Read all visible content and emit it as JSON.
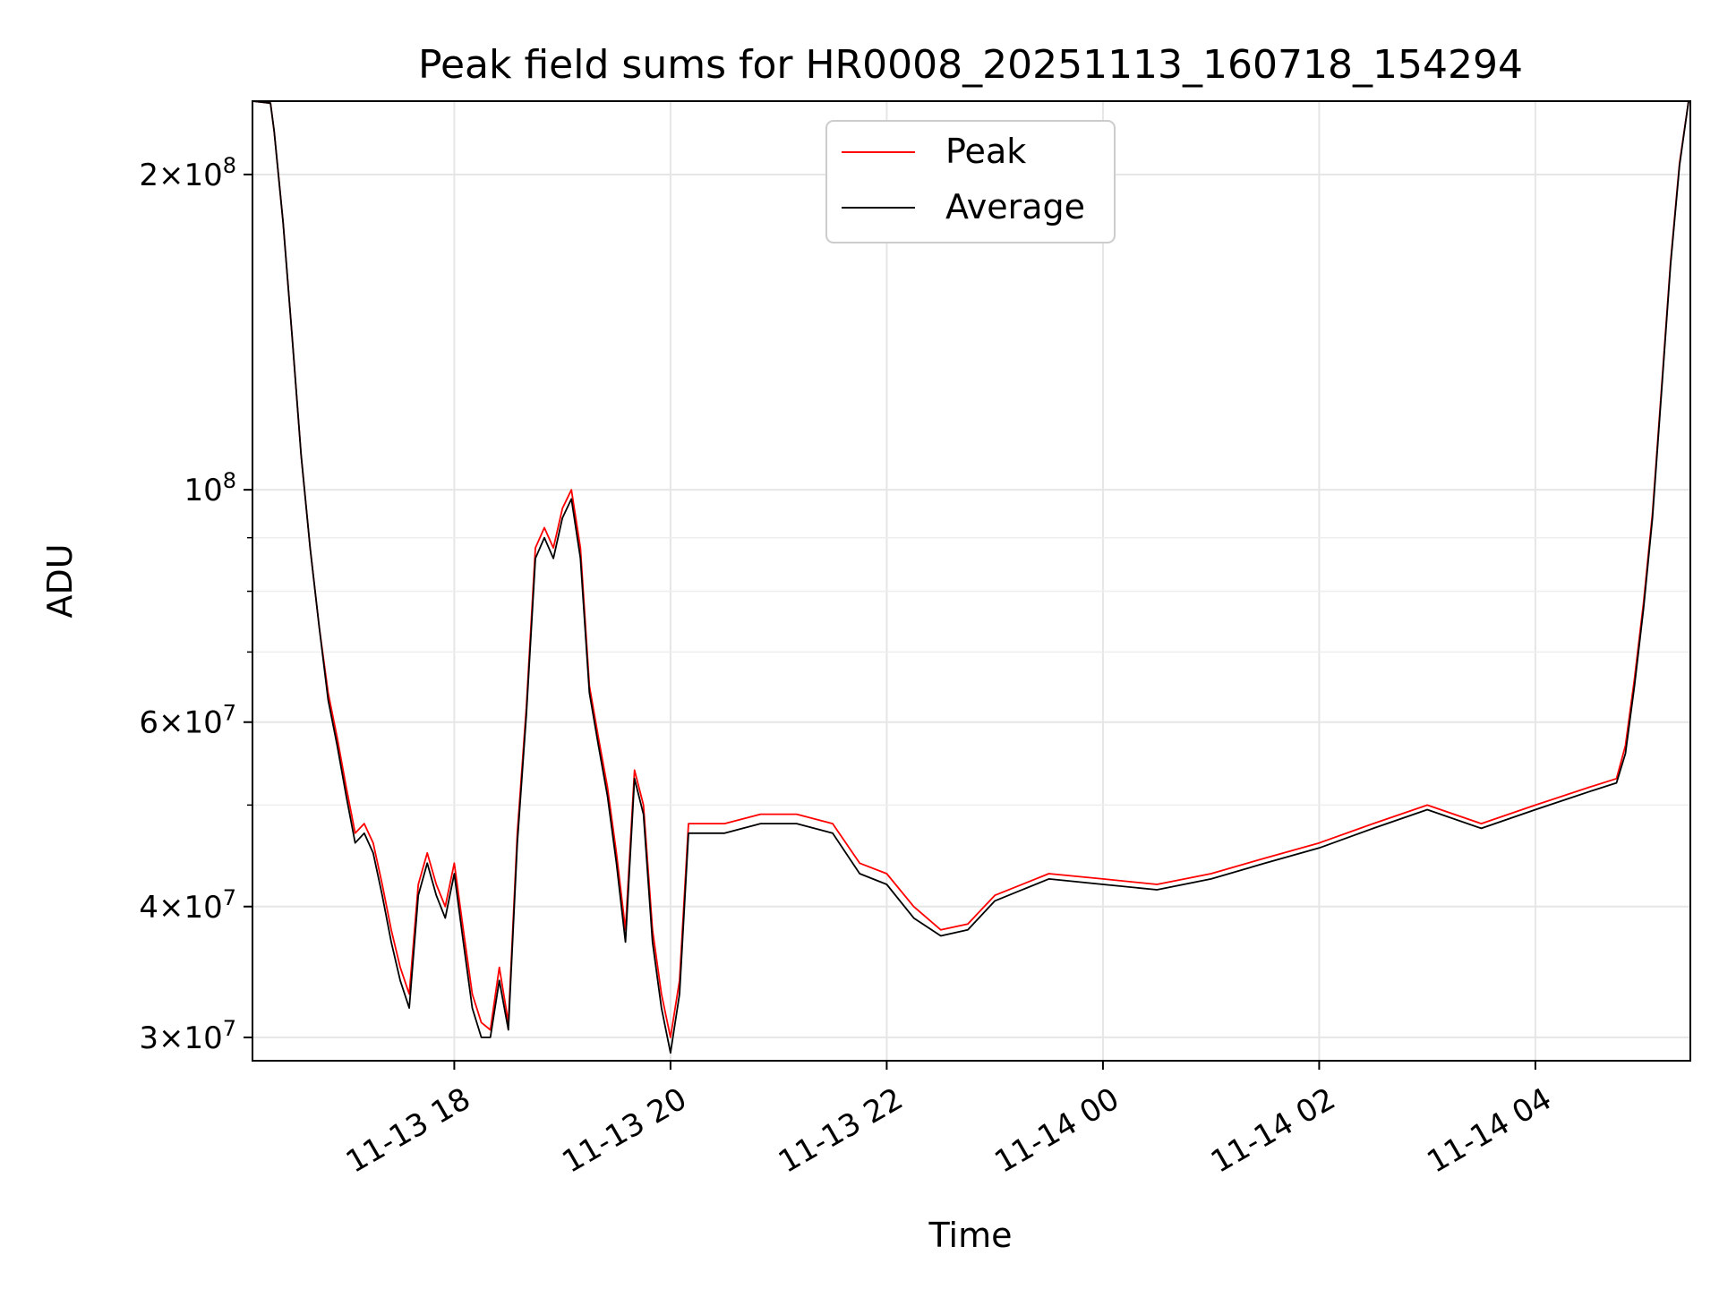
{
  "chart_data": {
    "type": "line",
    "title": "Peak field sums for HR0008_20251113_160718_154294",
    "xlabel": "Time",
    "ylabel": "ADU",
    "yscale": "log",
    "xlim": [
      "2025-11-13 16:08",
      "2025-11-14 05:26"
    ],
    "ylim": [
      28500000,
      235000000
    ],
    "x_ticks": [
      "11-13 18",
      "11-13 20",
      "11-13 22",
      "11-14 00",
      "11-14 02",
      "11-14 04"
    ],
    "y_ticks": [
      {
        "value": 30000000,
        "mant": "3",
        "exp": "7"
      },
      {
        "value": 40000000,
        "mant": "4",
        "exp": "7"
      },
      {
        "value": 60000000,
        "mant": "6",
        "exp": "7"
      },
      {
        "value": 100000000,
        "mant": "",
        "exp": "8"
      },
      {
        "value": 200000000,
        "mant": "2",
        "exp": "8"
      }
    ],
    "y_minor_ticks": [
      50000000,
      70000000,
      80000000,
      90000000
    ],
    "grid": true,
    "legend": {
      "placement": "top-center"
    },
    "series": [
      {
        "name": "Peak",
        "color": "#ff0000",
        "points": [
          [
            "2025-11-13 16:08",
            235000000
          ],
          [
            "2025-11-13 16:18",
            234000000
          ],
          [
            "2025-11-13 16:20",
            220000000
          ],
          [
            "2025-11-13 16:25",
            180000000
          ],
          [
            "2025-11-13 16:30",
            140000000
          ],
          [
            "2025-11-13 16:35",
            108000000
          ],
          [
            "2025-11-13 16:40",
            88000000
          ],
          [
            "2025-11-13 16:45",
            74000000
          ],
          [
            "2025-11-13 16:50",
            64000000
          ],
          [
            "2025-11-13 16:55",
            58000000
          ],
          [
            "2025-11-13 17:00",
            52000000
          ],
          [
            "2025-11-13 17:05",
            47000000
          ],
          [
            "2025-11-13 17:10",
            48000000
          ],
          [
            "2025-11-13 17:15",
            46000000
          ],
          [
            "2025-11-13 17:20",
            42000000
          ],
          [
            "2025-11-13 17:25",
            38000000
          ],
          [
            "2025-11-13 17:30",
            35000000
          ],
          [
            "2025-11-13 17:35",
            33000000
          ],
          [
            "2025-11-13 17:40",
            42000000
          ],
          [
            "2025-11-13 17:45",
            45000000
          ],
          [
            "2025-11-13 17:50",
            42000000
          ],
          [
            "2025-11-13 17:55",
            40000000
          ],
          [
            "2025-11-13 18:00",
            44000000
          ],
          [
            "2025-11-13 18:05",
            38000000
          ],
          [
            "2025-11-13 18:10",
            33000000
          ],
          [
            "2025-11-13 18:15",
            31000000
          ],
          [
            "2025-11-13 18:20",
            30500000
          ],
          [
            "2025-11-13 18:25",
            35000000
          ],
          [
            "2025-11-13 18:30",
            31000000
          ],
          [
            "2025-11-13 18:35",
            47000000
          ],
          [
            "2025-11-13 18:40",
            62000000
          ],
          [
            "2025-11-13 18:45",
            88000000
          ],
          [
            "2025-11-13 18:50",
            92000000
          ],
          [
            "2025-11-13 18:55",
            88000000
          ],
          [
            "2025-11-13 19:00",
            96000000
          ],
          [
            "2025-11-13 19:05",
            100000000
          ],
          [
            "2025-11-13 19:10",
            88000000
          ],
          [
            "2025-11-13 19:15",
            65000000
          ],
          [
            "2025-11-13 19:20",
            58000000
          ],
          [
            "2025-11-13 19:25",
            52000000
          ],
          [
            "2025-11-13 19:30",
            45000000
          ],
          [
            "2025-11-13 19:35",
            38000000
          ],
          [
            "2025-11-13 19:40",
            54000000
          ],
          [
            "2025-11-13 19:45",
            50000000
          ],
          [
            "2025-11-13 19:50",
            38000000
          ],
          [
            "2025-11-13 19:55",
            33000000
          ],
          [
            "2025-11-13 20:00",
            30000000
          ],
          [
            "2025-11-13 20:05",
            34000000
          ],
          [
            "2025-11-13 20:10",
            48000000
          ],
          [
            "2025-11-13 20:30",
            48000000
          ],
          [
            "2025-11-13 20:50",
            49000000
          ],
          [
            "2025-11-13 21:10",
            49000000
          ],
          [
            "2025-11-13 21:30",
            48000000
          ],
          [
            "2025-11-13 21:45",
            44000000
          ],
          [
            "2025-11-13 22:00",
            43000000
          ],
          [
            "2025-11-13 22:15",
            40000000
          ],
          [
            "2025-11-13 22:30",
            38000000
          ],
          [
            "2025-11-13 22:45",
            38500000
          ],
          [
            "2025-11-13 23:00",
            41000000
          ],
          [
            "2025-11-13 23:30",
            43000000
          ],
          [
            "2025-11-14 00:00",
            42500000
          ],
          [
            "2025-11-14 00:30",
            42000000
          ],
          [
            "2025-11-14 01:00",
            43000000
          ],
          [
            "2025-11-14 01:30",
            44500000
          ],
          [
            "2025-11-14 02:00",
            46000000
          ],
          [
            "2025-11-14 02:30",
            48000000
          ],
          [
            "2025-11-14 03:00",
            50000000
          ],
          [
            "2025-11-14 03:30",
            48000000
          ],
          [
            "2025-11-14 04:00",
            50000000
          ],
          [
            "2025-11-14 04:30",
            52000000
          ],
          [
            "2025-11-14 04:45",
            53000000
          ],
          [
            "2025-11-14 04:50",
            57000000
          ],
          [
            "2025-11-14 04:55",
            66000000
          ],
          [
            "2025-11-14 05:00",
            78000000
          ],
          [
            "2025-11-14 05:05",
            95000000
          ],
          [
            "2025-11-14 05:10",
            125000000
          ],
          [
            "2025-11-14 05:15",
            165000000
          ],
          [
            "2025-11-14 05:20",
            205000000
          ],
          [
            "2025-11-14 05:25",
            235000000
          ],
          [
            "2025-11-14 05:26",
            235000000
          ]
        ]
      },
      {
        "name": "Average",
        "color": "#000000",
        "points": [
          [
            "2025-11-13 16:08",
            235000000
          ],
          [
            "2025-11-13 16:18",
            234000000
          ],
          [
            "2025-11-13 16:20",
            220000000
          ],
          [
            "2025-11-13 16:25",
            180000000
          ],
          [
            "2025-11-13 16:30",
            140000000
          ],
          [
            "2025-11-13 16:35",
            108000000
          ],
          [
            "2025-11-13 16:40",
            88000000
          ],
          [
            "2025-11-13 16:45",
            74000000
          ],
          [
            "2025-11-13 16:50",
            63000000
          ],
          [
            "2025-11-13 16:55",
            57000000
          ],
          [
            "2025-11-13 17:00",
            51000000
          ],
          [
            "2025-11-13 17:05",
            46000000
          ],
          [
            "2025-11-13 17:10",
            47000000
          ],
          [
            "2025-11-13 17:15",
            45000000
          ],
          [
            "2025-11-13 17:20",
            41000000
          ],
          [
            "2025-11-13 17:25",
            37000000
          ],
          [
            "2025-11-13 17:30",
            34000000
          ],
          [
            "2025-11-13 17:35",
            32000000
          ],
          [
            "2025-11-13 17:40",
            41000000
          ],
          [
            "2025-11-13 17:45",
            44000000
          ],
          [
            "2025-11-13 17:50",
            41000000
          ],
          [
            "2025-11-13 17:55",
            39000000
          ],
          [
            "2025-11-13 18:00",
            43000000
          ],
          [
            "2025-11-13 18:05",
            37000000
          ],
          [
            "2025-11-13 18:10",
            32000000
          ],
          [
            "2025-11-13 18:15",
            30000000
          ],
          [
            "2025-11-13 18:20",
            30000000
          ],
          [
            "2025-11-13 18:25",
            34000000
          ],
          [
            "2025-11-13 18:30",
            30500000
          ],
          [
            "2025-11-13 18:35",
            46000000
          ],
          [
            "2025-11-13 18:40",
            61000000
          ],
          [
            "2025-11-13 18:45",
            86000000
          ],
          [
            "2025-11-13 18:50",
            90000000
          ],
          [
            "2025-11-13 18:55",
            86000000
          ],
          [
            "2025-11-13 19:00",
            94000000
          ],
          [
            "2025-11-13 19:05",
            98000000
          ],
          [
            "2025-11-13 19:10",
            86000000
          ],
          [
            "2025-11-13 19:15",
            64000000
          ],
          [
            "2025-11-13 19:20",
            57000000
          ],
          [
            "2025-11-13 19:25",
            51000000
          ],
          [
            "2025-11-13 19:30",
            44000000
          ],
          [
            "2025-11-13 19:35",
            37000000
          ],
          [
            "2025-11-13 19:40",
            53000000
          ],
          [
            "2025-11-13 19:45",
            49000000
          ],
          [
            "2025-11-13 19:50",
            37000000
          ],
          [
            "2025-11-13 19:55",
            32000000
          ],
          [
            "2025-11-13 20:00",
            29000000
          ],
          [
            "2025-11-13 20:05",
            33000000
          ],
          [
            "2025-11-13 20:10",
            47000000
          ],
          [
            "2025-11-13 20:30",
            47000000
          ],
          [
            "2025-11-13 20:50",
            48000000
          ],
          [
            "2025-11-13 21:10",
            48000000
          ],
          [
            "2025-11-13 21:30",
            47000000
          ],
          [
            "2025-11-13 21:45",
            43000000
          ],
          [
            "2025-11-13 22:00",
            42000000
          ],
          [
            "2025-11-13 22:15",
            39000000
          ],
          [
            "2025-11-13 22:30",
            37500000
          ],
          [
            "2025-11-13 22:45",
            38000000
          ],
          [
            "2025-11-13 23:00",
            40500000
          ],
          [
            "2025-11-13 23:30",
            42500000
          ],
          [
            "2025-11-14 00:00",
            42000000
          ],
          [
            "2025-11-14 00:30",
            41500000
          ],
          [
            "2025-11-14 01:00",
            42500000
          ],
          [
            "2025-11-14 01:30",
            44000000
          ],
          [
            "2025-11-14 02:00",
            45500000
          ],
          [
            "2025-11-14 02:30",
            47500000
          ],
          [
            "2025-11-14 03:00",
            49500000
          ],
          [
            "2025-11-14 03:30",
            47500000
          ],
          [
            "2025-11-14 04:00",
            49500000
          ],
          [
            "2025-11-14 04:30",
            51500000
          ],
          [
            "2025-11-14 04:45",
            52500000
          ],
          [
            "2025-11-14 04:50",
            56000000
          ],
          [
            "2025-11-14 04:55",
            65000000
          ],
          [
            "2025-11-14 05:00",
            77000000
          ],
          [
            "2025-11-14 05:05",
            94000000
          ],
          [
            "2025-11-14 05:10",
            124000000
          ],
          [
            "2025-11-14 05:15",
            164000000
          ],
          [
            "2025-11-14 05:20",
            204000000
          ],
          [
            "2025-11-14 05:25",
            235000000
          ],
          [
            "2025-11-14 05:26",
            235000000
          ]
        ]
      }
    ]
  }
}
